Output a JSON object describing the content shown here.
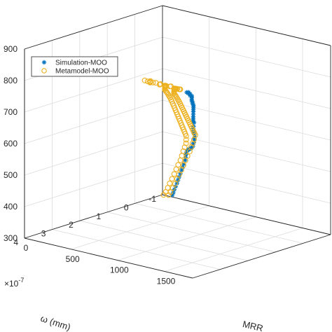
{
  "chart_data": {
    "type": "scatter",
    "title": "",
    "xlabel": "ω (mm)",
    "x_exponent": "×10",
    "x_exponent_power": "-7",
    "ylabel": "MRR",
    "zlabel": "",
    "xlim": [
      -1,
      4
    ],
    "ylim": [
      0,
      1800
    ],
    "zlim": [
      300,
      900
    ],
    "xticks": [
      "-1",
      "0",
      "1",
      "2",
      "3",
      "4"
    ],
    "yticks": [
      "0",
      "500",
      "1000",
      "1500"
    ],
    "zticks": [
      "300",
      "400",
      "500",
      "600",
      "700",
      "800",
      "900"
    ],
    "grid": true,
    "legend_position": "top-left",
    "series": [
      {
        "name": "Simulation-MOO",
        "color": "#0072BD",
        "marker": "asterisk",
        "points": [
          [
            3.2,
            1500,
            846
          ],
          [
            3.0,
            1460,
            838
          ],
          [
            2.8,
            1400,
            826
          ],
          [
            2.7,
            1370,
            820
          ],
          [
            2.5,
            1330,
            810
          ],
          [
            2.4,
            1300,
            800
          ],
          [
            2.2,
            1260,
            790
          ],
          [
            2.1,
            1230,
            780
          ],
          [
            2.0,
            1200,
            770
          ],
          [
            1.9,
            1170,
            760
          ],
          [
            1.8,
            1150,
            752
          ],
          [
            1.7,
            1120,
            742
          ],
          [
            1.6,
            1100,
            733
          ],
          [
            1.5,
            1070,
            722
          ],
          [
            1.4,
            1040,
            710
          ],
          [
            1.3,
            1010,
            698
          ],
          [
            1.2,
            980,
            685
          ],
          [
            1.1,
            950,
            672
          ],
          [
            1.0,
            920,
            660
          ],
          [
            0.9,
            890,
            648
          ],
          [
            0.8,
            870,
            640
          ],
          [
            0.75,
            850,
            625
          ],
          [
            0.7,
            830,
            615
          ],
          [
            0.6,
            800,
            600
          ],
          [
            0.5,
            780,
            590
          ],
          [
            0.4,
            760,
            575
          ],
          [
            0.35,
            740,
            565
          ],
          [
            0.3,
            720,
            552
          ],
          [
            0.2,
            680,
            540
          ],
          [
            0.1,
            650,
            530
          ],
          [
            0.0,
            610,
            520
          ],
          [
            -0.1,
            570,
            512
          ],
          [
            -0.2,
            530,
            505
          ],
          [
            -0.3,
            490,
            498
          ],
          [
            -0.4,
            450,
            490
          ],
          [
            -0.45,
            420,
            480
          ],
          [
            -0.5,
            400,
            470
          ],
          [
            -0.55,
            380,
            458
          ],
          [
            -0.6,
            360,
            446
          ],
          [
            -0.62,
            340,
            432
          ],
          [
            -0.65,
            320,
            420
          ],
          [
            -0.68,
            300,
            408
          ],
          [
            -0.7,
            280,
            395
          ],
          [
            -0.72,
            260,
            382
          ],
          [
            -0.75,
            240,
            370
          ],
          [
            -0.78,
            220,
            358
          ],
          [
            -0.8,
            200,
            346
          ],
          [
            -0.82,
            180,
            334
          ],
          [
            -0.85,
            160,
            322
          ],
          [
            -0.88,
            140,
            312
          ]
        ]
      },
      {
        "name": "Metamodel-MOO",
        "color": "#EDB120",
        "marker": "circle",
        "points": [
          [
            3.6,
            1550,
            870
          ],
          [
            3.5,
            1520,
            865
          ],
          [
            3.4,
            1480,
            860
          ],
          [
            3.3,
            1450,
            855
          ],
          [
            3.5,
            1420,
            868
          ],
          [
            3.2,
            1400,
            850
          ],
          [
            3.4,
            1380,
            862
          ],
          [
            3.1,
            1360,
            845
          ],
          [
            3.6,
            1340,
            872
          ],
          [
            3.0,
            1330,
            840
          ],
          [
            3.3,
            1310,
            856
          ],
          [
            3.5,
            1300,
            866
          ],
          [
            2.9,
            1290,
            835
          ],
          [
            3.2,
            1280,
            850
          ],
          [
            3.4,
            1270,
            860
          ],
          [
            2.8,
            1250,
            830
          ],
          [
            3.1,
            1240,
            846
          ],
          [
            3.6,
            1230,
            874
          ],
          [
            2.7,
            1220,
            825
          ],
          [
            3.0,
            1210,
            842
          ],
          [
            3.3,
            1200,
            858
          ],
          [
            2.6,
            1190,
            818
          ],
          [
            2.9,
            1180,
            836
          ],
          [
            3.5,
            1170,
            866
          ],
          [
            2.5,
            1160,
            812
          ],
          [
            2.8,
            1150,
            830
          ],
          [
            3.2,
            1140,
            852
          ],
          [
            2.4,
            1130,
            806
          ],
          [
            2.7,
            1120,
            825
          ],
          [
            3.4,
            1110,
            862
          ],
          [
            2.3,
            1100,
            800
          ],
          [
            2.6,
            1090,
            818
          ],
          [
            3.1,
            1080,
            846
          ],
          [
            2.2,
            1070,
            792
          ],
          [
            2.5,
            1060,
            812
          ],
          [
            3.0,
            1050,
            842
          ],
          [
            2.1,
            1040,
            786
          ],
          [
            2.4,
            1030,
            806
          ],
          [
            2.9,
            1020,
            836
          ],
          [
            2.0,
            1010,
            778
          ],
          [
            2.3,
            1000,
            798
          ],
          [
            2.8,
            990,
            830
          ],
          [
            1.9,
            980,
            770
          ],
          [
            2.2,
            970,
            790
          ],
          [
            1.8,
            960,
            762
          ],
          [
            2.1,
            950,
            782
          ],
          [
            1.7,
            940,
            754
          ],
          [
            2.0,
            930,
            774
          ],
          [
            1.6,
            920,
            745
          ],
          [
            1.9,
            910,
            766
          ],
          [
            1.5,
            900,
            736
          ],
          [
            1.8,
            890,
            757
          ],
          [
            1.4,
            880,
            727
          ],
          [
            1.7,
            870,
            748
          ],
          [
            1.3,
            860,
            718
          ],
          [
            1.6,
            850,
            739
          ],
          [
            1.2,
            840,
            708
          ],
          [
            1.5,
            830,
            729
          ],
          [
            1.1,
            820,
            698
          ],
          [
            1.4,
            810,
            719
          ],
          [
            1.0,
            800,
            688
          ],
          [
            1.3,
            790,
            708
          ],
          [
            0.9,
            780,
            678
          ],
          [
            1.2,
            770,
            697
          ],
          [
            0.8,
            760,
            668
          ],
          [
            1.1,
            750,
            686
          ],
          [
            0.7,
            740,
            658
          ],
          [
            1.0,
            730,
            675
          ],
          [
            0.6,
            720,
            648
          ],
          [
            0.9,
            710,
            664
          ],
          [
            0.5,
            700,
            638
          ],
          [
            0.8,
            690,
            653
          ],
          [
            0.4,
            680,
            628
          ],
          [
            0.7,
            670,
            642
          ],
          [
            0.3,
            660,
            618
          ],
          [
            0.6,
            650,
            631
          ],
          [
            0.2,
            640,
            608
          ],
          [
            0.5,
            630,
            620
          ],
          [
            0.1,
            620,
            598
          ],
          [
            0.4,
            610,
            609
          ],
          [
            0.0,
            600,
            588
          ],
          [
            0.3,
            590,
            598
          ],
          [
            -0.1,
            580,
            578
          ],
          [
            0.2,
            570,
            587
          ],
          [
            -0.2,
            560,
            568
          ],
          [
            0.1,
            550,
            576
          ],
          [
            -0.3,
            540,
            558
          ],
          [
            0.0,
            530,
            565
          ],
          [
            -0.4,
            520,
            548
          ],
          [
            -0.1,
            510,
            554
          ],
          [
            -0.5,
            500,
            538
          ],
          [
            -0.2,
            490,
            543
          ],
          [
            -0.55,
            470,
            520
          ],
          [
            -0.3,
            460,
            526
          ],
          [
            -0.6,
            440,
            505
          ],
          [
            -0.4,
            430,
            510
          ],
          [
            -0.65,
            410,
            490
          ],
          [
            -0.45,
            400,
            494
          ],
          [
            -0.7,
            380,
            472
          ],
          [
            -0.5,
            370,
            478
          ],
          [
            -0.72,
            350,
            455
          ],
          [
            -0.55,
            340,
            460
          ],
          [
            -0.75,
            320,
            438
          ],
          [
            -0.6,
            310,
            442
          ],
          [
            -0.78,
            290,
            420
          ],
          [
            -0.62,
            280,
            425
          ],
          [
            -0.8,
            260,
            402
          ],
          [
            -0.65,
            250,
            408
          ],
          [
            -0.82,
            230,
            385
          ],
          [
            -0.68,
            220,
            390
          ],
          [
            -0.85,
            200,
            368
          ],
          [
            -0.7,
            190,
            372
          ],
          [
            -0.88,
            170,
            350
          ],
          [
            -0.72,
            160,
            355
          ],
          [
            -0.9,
            140,
            334
          ],
          [
            -0.75,
            130,
            338
          ],
          [
            -0.92,
            110,
            318
          ],
          [
            -0.78,
            100,
            322
          ],
          [
            -0.95,
            80,
            306
          ],
          [
            -0.8,
            70,
            310
          ]
        ]
      }
    ]
  }
}
